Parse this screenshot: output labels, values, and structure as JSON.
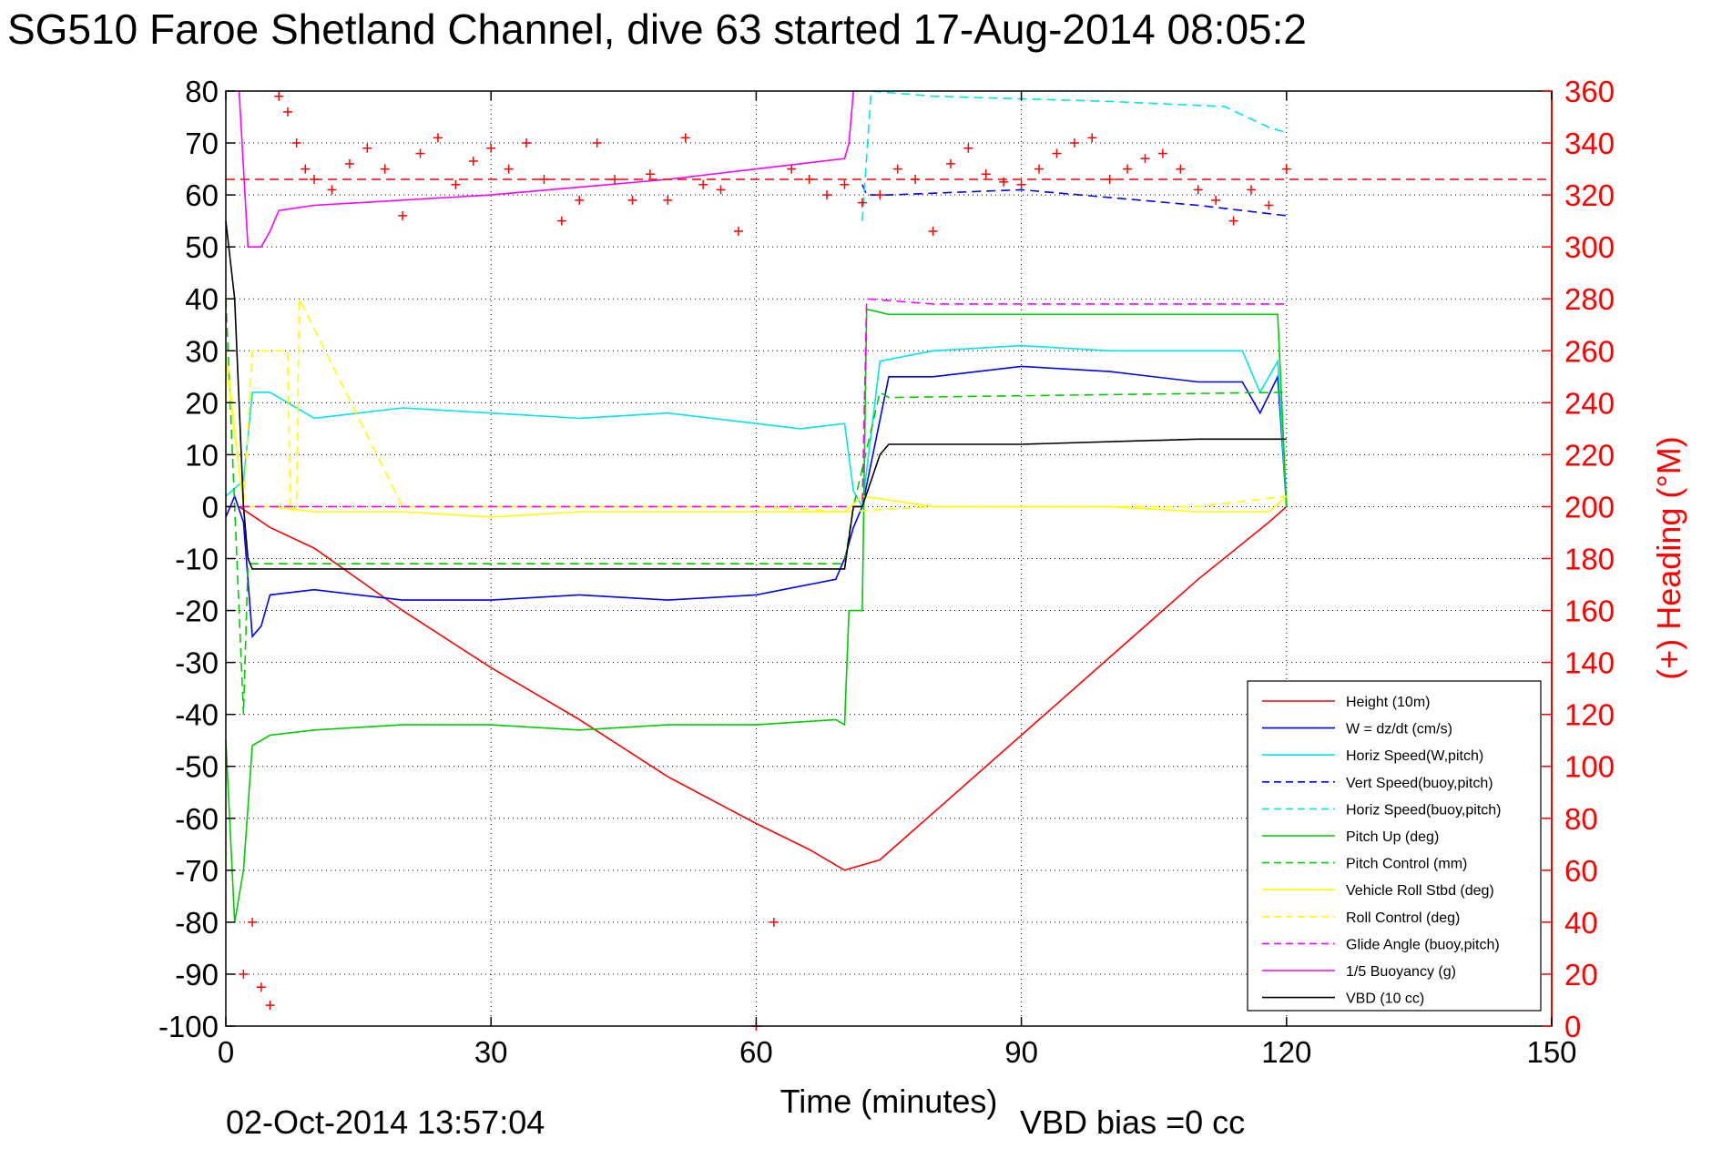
{
  "figure": {
    "title": "SG510 Faroe Shetland Channel, dive 63 started 17-Aug-2014 08:05:2",
    "timestamp": "02-Oct-2014 13:57:04",
    "vbd_bias": "VBD bias =0 cc"
  },
  "chart_data": {
    "type": "line",
    "xlabel": "Time (minutes)",
    "ylabel": "",
    "y2label": "(+) Heading (°M)",
    "xlim": [
      0,
      150
    ],
    "ylim": [
      -100,
      80
    ],
    "y2lim": [
      0,
      360
    ],
    "xticks": [
      "0",
      "30",
      "60",
      "90",
      "120",
      "150"
    ],
    "yticks": [
      "80",
      "70",
      "60",
      "50",
      "40",
      "30",
      "20",
      "10",
      "0",
      "-10",
      "-20",
      "-30",
      "-40",
      "-50",
      "-60",
      "-70",
      "-80",
      "-90",
      "-100"
    ],
    "y2ticks": [
      "360",
      "340",
      "320",
      "300",
      "280",
      "260",
      "240",
      "220",
      "200",
      "180",
      "160",
      "140",
      "120",
      "100",
      "80",
      "60",
      "40",
      "20",
      "0"
    ],
    "grid": true,
    "legend_position": "lower-right",
    "series": [
      {
        "name": "Height (10m)",
        "color": "#ff0000",
        "style": "solid",
        "x": [
          1.5,
          5,
          10,
          20,
          30,
          40,
          50,
          60,
          66,
          70,
          74,
          80,
          90,
          100,
          110,
          118,
          120
        ],
        "y": [
          0,
          -4,
          -8,
          -20,
          -31,
          -41,
          -52,
          -61,
          -66,
          -70,
          -68,
          -59,
          -44,
          -29,
          -14,
          -3,
          0
        ]
      },
      {
        "name": "W = dz/dt (cm/s)",
        "color": "#0000ff",
        "style": "solid",
        "x": [
          0,
          1,
          2,
          3,
          4,
          5,
          10,
          20,
          30,
          40,
          50,
          60,
          69,
          70,
          71,
          72,
          75,
          80,
          90,
          100,
          110,
          115,
          117,
          119,
          120
        ],
        "y": [
          -2,
          2,
          -3,
          -25,
          -23,
          -17,
          -16,
          -18,
          -18,
          -17,
          -18,
          -17,
          -14,
          -10,
          -4,
          0,
          25,
          25,
          27,
          26,
          24,
          24,
          18,
          25,
          0
        ]
      },
      {
        "name": "Horiz Speed(W,pitch)",
        "color": "#00e5e5",
        "style": "solid",
        "x": [
          0,
          2,
          3,
          5,
          10,
          20,
          30,
          40,
          50,
          60,
          65,
          70,
          71,
          72,
          74,
          80,
          90,
          100,
          110,
          115,
          117,
          119,
          120
        ],
        "y": [
          2,
          5,
          22,
          22,
          17,
          19,
          18,
          17,
          18,
          16,
          15,
          16,
          3,
          0,
          28,
          30,
          31,
          30,
          30,
          30,
          22,
          28,
          0
        ]
      },
      {
        "name": "Vert Speed(buoy,pitch)",
        "color": "#0000ff",
        "style": "dashed",
        "x": [
          72,
          72.5,
          75,
          90,
          110,
          120
        ],
        "y": [
          62,
          60,
          60,
          61,
          58,
          56
        ]
      },
      {
        "name": "Horiz Speed(buoy,pitch)",
        "color": "#00e5e5",
        "style": "dashed",
        "x": [
          72,
          73,
          80,
          100,
          113,
          118,
          120
        ],
        "y": [
          55,
          80,
          79,
          78,
          77,
          73,
          72
        ]
      },
      {
        "name": "Pitch Up (deg)",
        "color": "#00cc00",
        "style": "solid",
        "x": [
          0,
          1,
          2,
          3,
          5,
          10,
          20,
          30,
          40,
          50,
          60,
          69,
          70,
          70.5,
          72,
          72.5,
          75,
          90,
          110,
          119,
          120
        ],
        "y": [
          -45,
          -80,
          -70,
          -46,
          -44,
          -43,
          -42,
          -42,
          -43,
          -42,
          -42,
          -41,
          -42,
          -20,
          -20,
          38,
          37,
          37,
          37,
          37,
          0
        ]
      },
      {
        "name": "Pitch Control (mm)",
        "color": "#00cc00",
        "style": "dashed",
        "x": [
          0,
          2,
          2.5,
          10,
          70,
          71,
          74,
          75,
          120
        ],
        "y": [
          40,
          -40,
          -11,
          -11,
          -11,
          0,
          22,
          21,
          22
        ]
      },
      {
        "name": "Vehicle Roll Stbd (deg)",
        "color": "#ffff00",
        "style": "solid",
        "x": [
          0,
          2,
          5,
          10,
          20,
          30,
          40,
          50,
          60,
          70,
          72,
          80,
          90,
          100,
          110,
          118,
          120
        ],
        "y": [
          28,
          0,
          0,
          -1,
          -1,
          -2,
          -1,
          -1,
          -1,
          -1,
          2,
          0,
          0,
          0,
          -1,
          -1,
          2
        ]
      },
      {
        "name": "Roll Control (deg)",
        "color": "#ffff00",
        "style": "dashed",
        "x": [
          0,
          2,
          3,
          7,
          7.3,
          8,
          8.3,
          20,
          30,
          50,
          60,
          70,
          80,
          90,
          100,
          110,
          120
        ],
        "y": [
          30,
          0,
          30,
          30,
          -1,
          0,
          40,
          0,
          0,
          0,
          0,
          -1,
          0,
          0,
          0,
          0,
          2
        ]
      },
      {
        "name": "Glide Angle (buoy,pitch)",
        "color": "#ff00ff",
        "style": "dashed",
        "x": [
          0,
          10,
          30,
          50,
          70,
          72,
          72.5,
          80,
          100,
          120
        ],
        "y": [
          0,
          0,
          0,
          0,
          0,
          0,
          40,
          39,
          39,
          39
        ]
      },
      {
        "name": "1/5 Buoyancy (g)",
        "color": "#ff00ff",
        "style": "solid",
        "x": [
          1.5,
          2.5,
          4,
          5,
          6,
          10,
          30,
          50,
          60,
          65,
          70,
          70.5,
          71
        ],
        "y": [
          80,
          50,
          50,
          53,
          57,
          58,
          60,
          63,
          65,
          66,
          67,
          70,
          80
        ]
      },
      {
        "name": "VBD (10 cc)",
        "color": "#000000",
        "style": "solid",
        "x": [
          0,
          1,
          2,
          2.5,
          3,
          10,
          30,
          50,
          70,
          71,
          72,
          74,
          75,
          90,
          110,
          120
        ],
        "y": [
          55,
          40,
          0,
          -10,
          -12,
          -12,
          -12,
          -12,
          -12,
          0,
          0,
          10,
          12,
          12,
          13,
          13
        ]
      }
    ],
    "heading_series": {
      "marker": "+",
      "color": "#ff0000",
      "axis": "right",
      "mean_heading": 326,
      "x": [
        2,
        3,
        4,
        5,
        6,
        7,
        8,
        9,
        10,
        12,
        14,
        16,
        18,
        20,
        22,
        24,
        26,
        28,
        30,
        32,
        34,
        36,
        38,
        40,
        42,
        44,
        46,
        48,
        50,
        52,
        54,
        56,
        58,
        60,
        62,
        64,
        66,
        68,
        70,
        72,
        74,
        76,
        78,
        80,
        82,
        84,
        86,
        88,
        90,
        92,
        94,
        96,
        98,
        100,
        102,
        104,
        106,
        108,
        110,
        112,
        114,
        116,
        118,
        120
      ],
      "y": [
        20,
        40,
        15,
        8,
        358,
        352,
        340,
        330,
        326,
        322,
        332,
        338,
        330,
        312,
        336,
        342,
        324,
        333,
        338,
        330,
        340,
        326,
        310,
        318,
        340,
        326,
        318,
        328,
        318,
        342,
        324,
        322,
        306,
        0,
        40,
        330,
        326,
        320,
        324,
        317,
        320,
        330,
        326,
        306,
        332,
        338,
        328,
        325,
        324,
        330,
        336,
        340,
        342,
        326,
        330,
        334,
        336,
        330,
        322,
        318,
        310,
        322,
        316,
        330
      ]
    }
  }
}
